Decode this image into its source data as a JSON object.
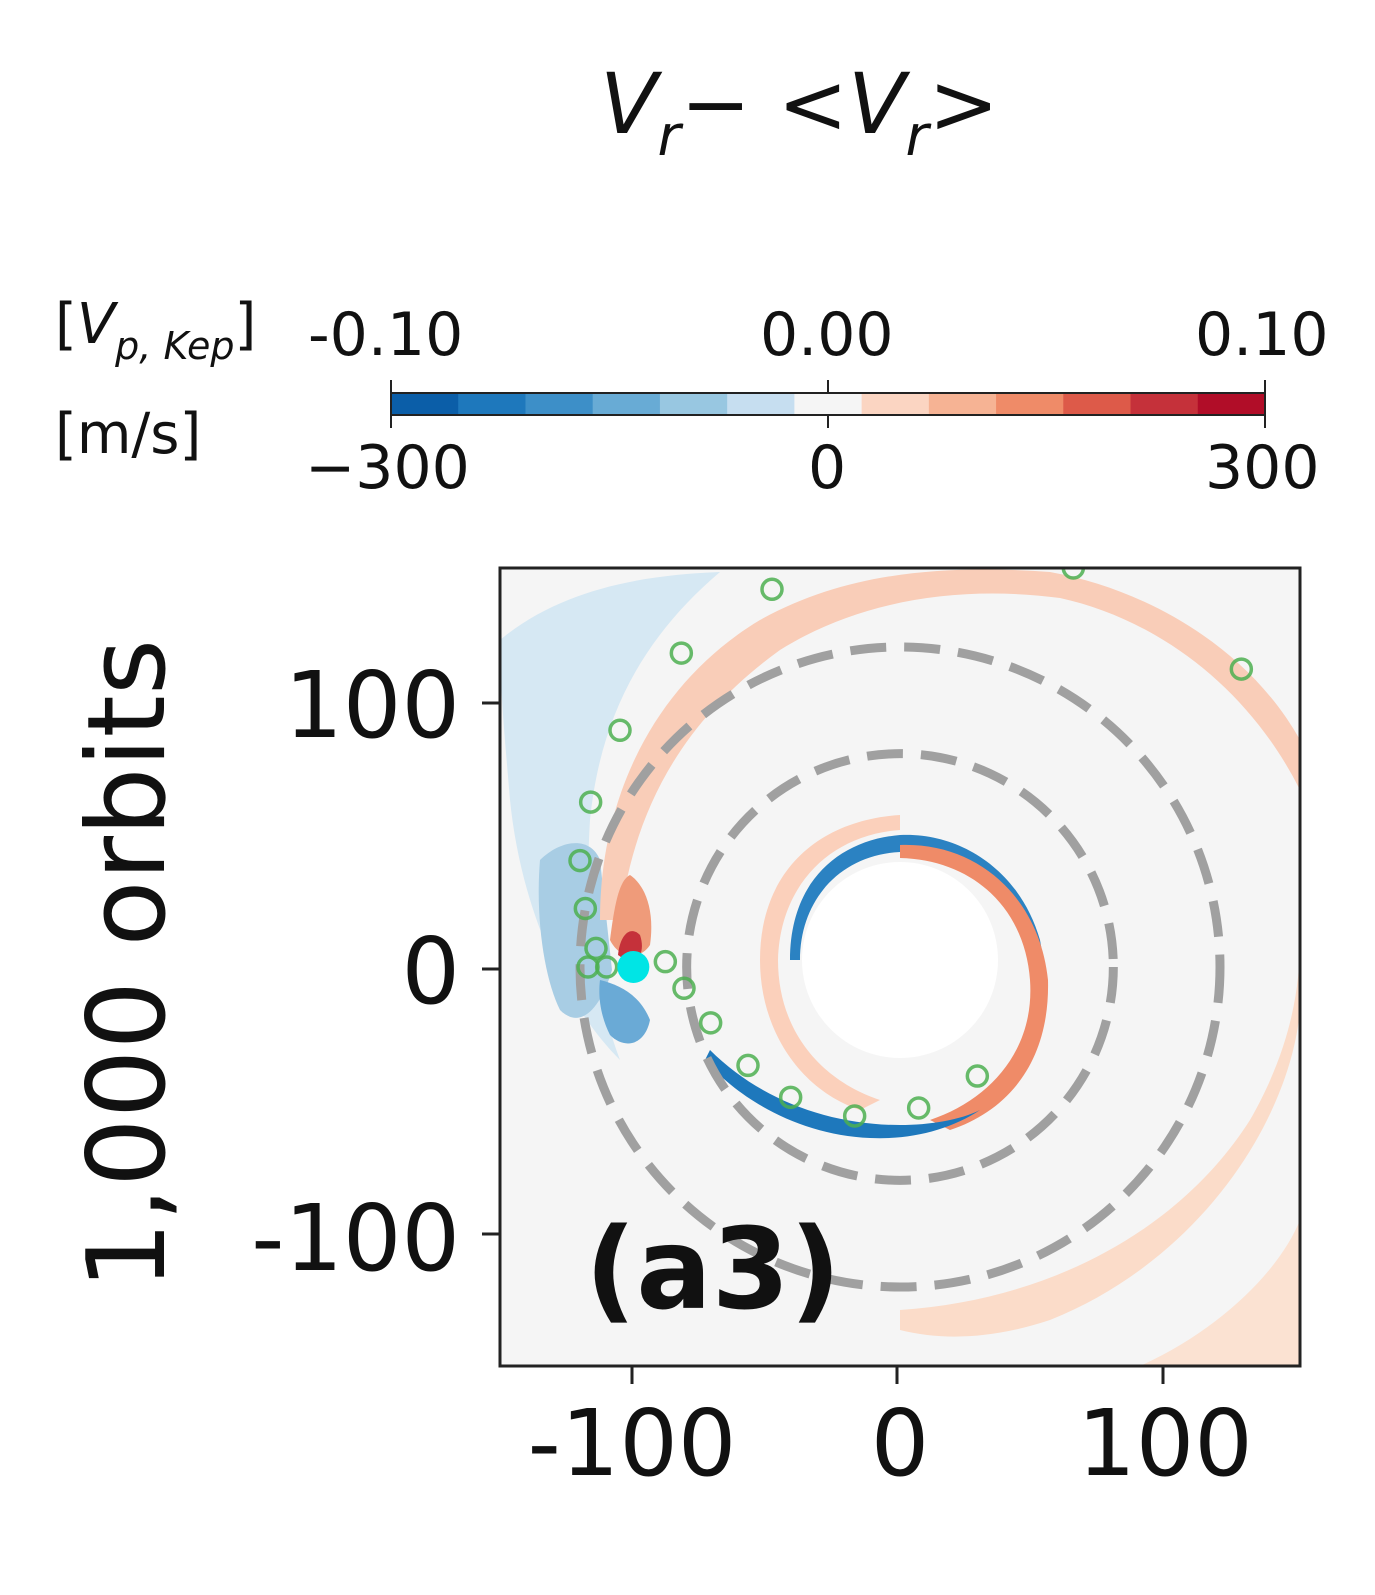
{
  "chart_data": {
    "type": "heatmap",
    "title": "V_r − <V_r>",
    "title_parts": {
      "v": "V",
      "sub": "r",
      "minus": "− <",
      "close": ">"
    },
    "ylabel": "1,000 orbits",
    "xlim": [
      -150,
      150
    ],
    "ylim": [
      -150,
      150
    ],
    "xticks": [
      -100,
      0,
      100
    ],
    "yticks": [
      -100,
      0,
      100
    ],
    "xtick_labels": [
      "-100",
      "0",
      "100"
    ],
    "ytick_labels": [
      "-100",
      "0",
      "100"
    ],
    "panel_label": "(a3)",
    "colormap": "RdBu_r",
    "colorbar": {
      "unit_top": "[V_p,Kep]",
      "unit_top_parts": {
        "open": "[",
        "v": "V",
        "sub": "p, Kep",
        "close": "]"
      },
      "unit_bottom": "[m/s]",
      "top_ticks": [
        -0.1,
        0.0,
        0.1
      ],
      "top_tick_labels": [
        "-0.10",
        "0.00",
        "0.10"
      ],
      "bottom_ticks": [
        -300,
        0,
        300
      ],
      "bottom_tick_labels": [
        "−300",
        "0",
        "300"
      ],
      "range": [
        -300,
        300
      ],
      "levels": 13,
      "colors": [
        "#0b5ea8",
        "#1e78bc",
        "#3d8fc8",
        "#68abd5",
        "#98c7e1",
        "#c6def0",
        "#f5f5f5",
        "#fbd5c2",
        "#f6b394",
        "#ef8b68",
        "#dd5a49",
        "#c5313a",
        "#b10d28"
      ]
    },
    "guide_circles_radius": [
      80,
      120
    ],
    "planet": {
      "x": -100,
      "y": 0,
      "color": "#00e5e5"
    },
    "spiral_markers": [
      [
        -117,
        0
      ],
      [
        -114,
        7
      ],
      [
        -118,
        22
      ],
      [
        -120,
        40
      ],
      [
        -116,
        62
      ],
      [
        -105,
        89
      ],
      [
        -82,
        118
      ],
      [
        -48,
        142
      ],
      [
        65,
        150
      ],
      [
        128,
        112
      ],
      [
        -110,
        0
      ],
      [
        -88,
        2
      ],
      [
        -81,
        -8
      ],
      [
        -71,
        -21
      ],
      [
        -57,
        -37
      ],
      [
        -41,
        -49
      ],
      [
        -17,
        -56
      ],
      [
        7,
        -53
      ],
      [
        29,
        -41
      ]
    ],
    "marker_color": "#4caf50"
  }
}
